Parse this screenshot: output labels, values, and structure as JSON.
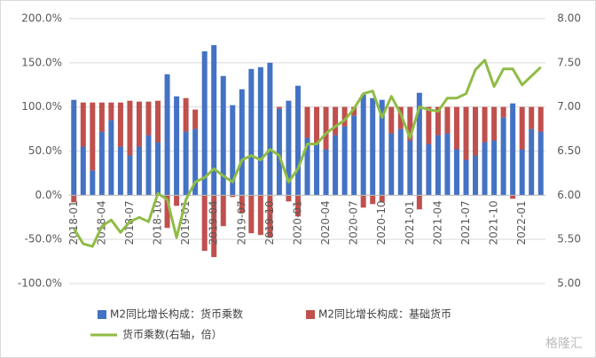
{
  "chart_data": {
    "type": "bar_line",
    "categories": [
      "2018-01",
      null,
      null,
      "2018-04",
      null,
      null,
      "2018-07",
      null,
      null,
      "2018-10",
      null,
      null,
      "2019-01",
      null,
      null,
      "2019-04",
      null,
      null,
      "2019-07",
      null,
      null,
      "2019-10",
      null,
      null,
      "2020-01",
      null,
      null,
      "2020-04",
      null,
      null,
      "2020-07",
      null,
      null,
      "2020-10",
      null,
      null,
      "2021-01",
      null,
      null,
      "2021-04",
      null,
      null,
      "2021-07",
      null,
      null,
      "2021-10",
      null,
      null,
      "2022-01",
      null,
      null
    ],
    "series": [
      {
        "name": "M2同比增长构成：货币乘数",
        "color": "#4472c4",
        "values": [
          108,
          55,
          28,
          72,
          85,
          55,
          45,
          55,
          68,
          60,
          137,
          112,
          72,
          75,
          163,
          170,
          135,
          102,
          120,
          143,
          145,
          150,
          98,
          107,
          124,
          65,
          58,
          52,
          68,
          78,
          90,
          114,
          110,
          108,
          70,
          75,
          62,
          116,
          58,
          68,
          70,
          52,
          40,
          45,
          60,
          62,
          88,
          104,
          52,
          75,
          72
        ]
      },
      {
        "name": "M2同比增长构成：基础货币",
        "color": "#c0504d",
        "values": [
          -8,
          50,
          77,
          33,
          20,
          50,
          62,
          51,
          38,
          47,
          -37,
          -12,
          38,
          22,
          -63,
          -70,
          -35,
          -2,
          -20,
          -43,
          -45,
          -48,
          2,
          -7,
          -24,
          35,
          42,
          48,
          32,
          22,
          10,
          -14,
          -10,
          -8,
          30,
          25,
          38,
          -16,
          42,
          32,
          30,
          48,
          60,
          55,
          40,
          38,
          12,
          -4,
          48,
          25,
          28
        ]
      },
      {
        "name": "货币乘数(右轴，倍）",
        "color": "#8fbc45",
        "axis": "y2",
        "values": [
          5.62,
          5.45,
          5.42,
          5.65,
          5.72,
          5.58,
          5.7,
          5.75,
          5.7,
          6.02,
          5.95,
          5.52,
          5.95,
          6.15,
          6.2,
          6.3,
          6.22,
          6.15,
          6.4,
          6.45,
          6.4,
          6.52,
          6.45,
          6.15,
          6.3,
          6.58,
          6.58,
          6.7,
          6.78,
          6.85,
          6.98,
          7.15,
          7.18,
          6.88,
          7.12,
          6.92,
          6.65,
          7.0,
          6.97,
          6.95,
          7.1,
          7.1,
          7.15,
          7.42,
          7.53,
          7.23,
          7.43,
          7.43,
          7.25,
          7.35,
          7.45
        ]
      }
    ],
    "ylim": [
      -100,
      200
    ],
    "yticks": [
      {
        "value": -100,
        "label": "-100.0%"
      },
      {
        "value": -50,
        "label": "-50.0%"
      },
      {
        "value": 0,
        "label": "0.0%"
      },
      {
        "value": 50,
        "label": "50.0%"
      },
      {
        "value": 100,
        "label": "100.0%"
      },
      {
        "value": 150,
        "label": "150.0%"
      },
      {
        "value": 200,
        "label": "200.0%"
      }
    ],
    "y2lim": [
      5,
      8
    ],
    "y2ticks": [
      {
        "value": 5,
        "label": "5.00"
      },
      {
        "value": 5.5,
        "label": "5.50"
      },
      {
        "value": 6,
        "label": "6.00"
      },
      {
        "value": 6.5,
        "label": "6.50"
      },
      {
        "value": 7,
        "label": "7.00"
      },
      {
        "value": 7.5,
        "label": "7.50"
      },
      {
        "value": 8,
        "label": "8.00"
      }
    ],
    "grid": true,
    "watermark": "格隆汇"
  }
}
